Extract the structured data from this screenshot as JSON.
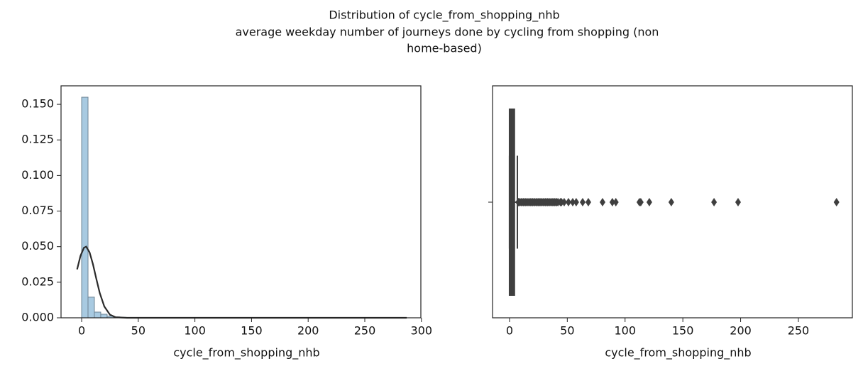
{
  "suptitle": [
    "Distribution of cycle_from_shopping_nhb",
    "average weekday number of journeys done by cycling from shopping (non",
    "home-based)"
  ],
  "chart_data": [
    {
      "type": "histogram",
      "bins": [
        0,
        5.62,
        11.24,
        16.86,
        22.48,
        28.1,
        33.72,
        39.34,
        44.96,
        50.58,
        56.2,
        61.82,
        67.44,
        73.06,
        78.68,
        84.3,
        89.92,
        95.54,
        101.16,
        106.78,
        112.4,
        118.02,
        123.64,
        129.26,
        134.88,
        140.5,
        146.12,
        151.74,
        157.36,
        162.98,
        168.6,
        174.22,
        179.84,
        185.46,
        191.08,
        196.7,
        202.32,
        207.94,
        213.56,
        219.18,
        224.8,
        230.42,
        236.04,
        241.66,
        247.28,
        252.9,
        258.52,
        264.14,
        269.76,
        275.38,
        281
      ],
      "values": [
        0.155,
        0.0145,
        0.004,
        0.0025,
        0.0012,
        0.0006,
        0.0003,
        0.0002,
        0.0001,
        0.0001,
        0.0001,
        0,
        0.0001,
        0,
        0,
        0.0001,
        0.0001,
        0,
        0,
        0,
        0.0001,
        0.0001,
        0,
        0,
        0.0001,
        0,
        0,
        0,
        0,
        0,
        0,
        0.0001,
        0,
        0,
        0,
        0,
        0,
        0,
        0,
        0,
        0,
        0,
        0,
        0,
        0,
        0,
        0,
        0,
        0,
        0.0001
      ],
      "color": "#9ec4de",
      "edgecolor": "#6f8494",
      "kde": {
        "x": [
          -4,
          -1,
          2,
          4,
          7,
          10,
          13,
          16,
          20,
          25,
          30,
          40,
          287
        ],
        "y": [
          0.034,
          0.0436,
          0.0492,
          0.05,
          0.046,
          0.0376,
          0.0272,
          0.0174,
          0.008,
          0.0022,
          0.0004,
          0,
          0
        ],
        "color": "#2b2b2b"
      },
      "xlabel": "cycle_from_shopping_nhb",
      "xlim": [
        -18.2,
        299.5
      ],
      "ylim": [
        0,
        0.163
      ],
      "xticks": [
        0,
        50,
        100,
        150,
        200,
        250,
        300
      ],
      "yticks": [
        {
          "value": 0,
          "label": "0.000"
        },
        0.025,
        {
          "value": 0.05,
          "label": "0.050"
        },
        0.075,
        {
          "value": 0.1,
          "label": "0.100"
        },
        0.125,
        {
          "value": 0.15,
          "label": "0.150"
        }
      ]
    },
    {
      "type": "box",
      "box": {
        "whislo": 0,
        "q1": 0,
        "med": 1,
        "q3": 4.2,
        "whishi": 6.8
      },
      "fliers": [
        7.5,
        8,
        9,
        10,
        11,
        12,
        13,
        14,
        15,
        16,
        17,
        18,
        19,
        20,
        21,
        22,
        23,
        24,
        25,
        26,
        27,
        28,
        29,
        30,
        31,
        32,
        33,
        34,
        35,
        36,
        37,
        38,
        39,
        40,
        41,
        42,
        44,
        45,
        47.3,
        51,
        54.7,
        57.7,
        63.3,
        68.2,
        80.5,
        89,
        92,
        112.4,
        113.6,
        121,
        140,
        177,
        197.8,
        283
      ],
      "color": "#3f3f3f",
      "xlabel": "cycle_from_shopping_nhb",
      "xlim": [
        -14.7,
        296.7
      ],
      "xticks": [
        0,
        50,
        100,
        150,
        200,
        250
      ]
    }
  ]
}
